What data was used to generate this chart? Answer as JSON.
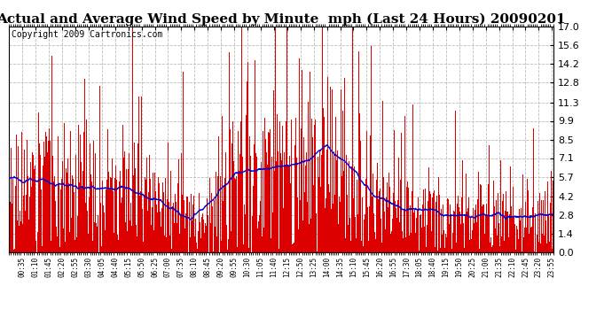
{
  "title": "Actual and Average Wind Speed by Minute  mph (Last 24 Hours) 20090201",
  "copyright_text": "Copyright 2009 Cartronics.com",
  "yticks": [
    0.0,
    1.4,
    2.8,
    4.2,
    5.7,
    7.1,
    8.5,
    9.9,
    11.3,
    12.8,
    14.2,
    15.6,
    17.0
  ],
  "ymax": 17.0,
  "ymin": 0.0,
  "bar_color": "#dd0000",
  "line_color": "#0000cc",
  "background_color": "#ffffff",
  "grid_color": "#bbbbbb",
  "title_fontsize": 11,
  "copyright_fontsize": 7,
  "seed": 12345
}
